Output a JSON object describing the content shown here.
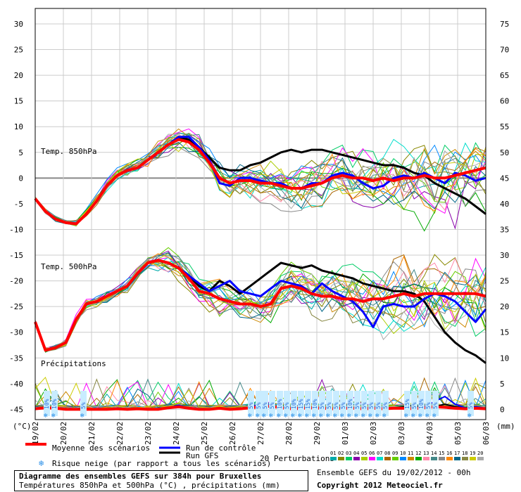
{
  "units": {
    "left": "(°C)",
    "right": "(mm)"
  },
  "left_ticks": [
    30,
    25,
    20,
    15,
    10,
    5,
    0,
    -5,
    -10,
    -15,
    -20,
    -25,
    -30,
    -35,
    -40,
    -45
  ],
  "right_ticks": [
    75,
    70,
    65,
    60,
    55,
    50,
    45,
    40,
    35,
    30,
    25,
    20,
    15,
    10,
    5,
    0
  ],
  "date_labels": [
    "19/02",
    "20/02",
    "21/02",
    "22/02",
    "23/02",
    "24/02",
    "25/02",
    "26/02",
    "27/02",
    "28/02",
    "29/02",
    "01/03",
    "02/03",
    "03/03",
    "04/03",
    "05/03",
    "06/03"
  ],
  "panel_labels": {
    "t850": "Temp. 850hPa",
    "t500": "Temp. 500hPa",
    "precip": "Précipitations"
  },
  "snow_risk": [
    {
      "x": 66,
      "label": "10%"
    },
    {
      "x": 77,
      "label": "10%"
    },
    {
      "x": 118,
      "label": "5%"
    },
    {
      "x": 356,
      "label": "5%"
    },
    {
      "x": 367,
      "label": "5%"
    },
    {
      "x": 376,
      "label": "5%"
    },
    {
      "x": 386,
      "label": "5%"
    },
    {
      "x": 397,
      "label": "10%"
    },
    {
      "x": 407,
      "label": "5%"
    },
    {
      "x": 417,
      "label": "10%"
    },
    {
      "x": 427,
      "label": "15%"
    },
    {
      "x": 437,
      "label": "15%"
    },
    {
      "x": 447,
      "label": "10%"
    },
    {
      "x": 457,
      "label": "5%"
    },
    {
      "x": 467,
      "label": "5%"
    },
    {
      "x": 477,
      "label": "5%"
    },
    {
      "x": 487,
      "label": "5%"
    },
    {
      "x": 497,
      "label": "10%"
    },
    {
      "x": 507,
      "label": "5%"
    },
    {
      "x": 517,
      "label": "5%"
    },
    {
      "x": 527,
      "label": "5%"
    },
    {
      "x": 537,
      "label": "5%"
    },
    {
      "x": 547,
      "label": "5%"
    },
    {
      "x": 578,
      "label": "15%"
    },
    {
      "x": 588,
      "label": "5%"
    },
    {
      "x": 598,
      "label": "10%"
    },
    {
      "x": 608,
      "label": "5%"
    },
    {
      "x": 618,
      "label": "5%"
    },
    {
      "x": 668,
      "label": "5%"
    }
  ],
  "legend": {
    "mean": "Moyenne des scénarios",
    "control": "Run de contrôle",
    "gfs": "Run GFS",
    "snow": "Risque neige (par rapport a tous les scénarios)",
    "perturbations": "20 Perturbations",
    "perturbation_ids": [
      "01",
      "02",
      "03",
      "04",
      "05",
      "06",
      "07",
      "08",
      "09",
      "10",
      "11",
      "12",
      "13",
      "14",
      "15",
      "16",
      "17",
      "18",
      "19",
      "20"
    ]
  },
  "colors": {
    "mean": "#ff0000",
    "control": "#0000ff",
    "gfs": "#000000",
    "perturbations": [
      "#00aaaa",
      "#888800",
      "#00cc66",
      "#8800aa",
      "#aacc00",
      "#ff00ff",
      "#00ddcc",
      "#aa6600",
      "#66cc00",
      "#0088ff",
      "#cc8800",
      "#00aa00",
      "#ff88aa",
      "#448888",
      "#888888",
      "#ff8800",
      "#006688",
      "#888844",
      "#cccc00",
      "#aaaaaa"
    ]
  },
  "title": {
    "main": "Diagramme des ensembles GEFS sur 384h pour Bruxelles",
    "sub": "Températures 850hPa et 500hPa (°C) , précipitations (mm)"
  },
  "ensemble_info": "Ensemble GEFS du 19/02/2012 - 00h",
  "copyright": "Copyright 2012 Meteociel.fr",
  "chart_data": {
    "type": "line",
    "x_unit": "date (6-hourly steps, 19/02/2012 00h to 06/03/2012)",
    "t850": {
      "ylabel": "Temp. 850hPa (°C)",
      "mean": [
        -4,
        -6.5,
        -8,
        -8.7,
        -8.9,
        -7,
        -4.5,
        -1.5,
        0.5,
        1.5,
        2,
        3.5,
        5,
        6.5,
        7.5,
        7,
        5.5,
        3,
        0,
        -1,
        -0.5,
        -0.5,
        -1,
        -1,
        -1.5,
        -2,
        -2,
        -1.5,
        -1,
        0,
        0.5,
        0,
        0,
        -0.5,
        0,
        -0.5,
        0,
        0,
        0.5,
        0,
        0,
        0.5,
        1,
        1.5,
        2
      ],
      "control": [
        -4,
        -6.5,
        -8,
        -8.7,
        -8.9,
        -7,
        -4.5,
        -1.5,
        0.5,
        1.5,
        2,
        3.5,
        5,
        6.5,
        8,
        8,
        6,
        3.5,
        -1,
        -1.5,
        0,
        0,
        -0.5,
        -1,
        -1,
        -2,
        -2,
        -1,
        -1,
        0.5,
        1,
        0.5,
        -1,
        -2,
        -1.5,
        0,
        0.5,
        0,
        1,
        0,
        -1,
        1,
        0.5,
        -0.5,
        0
      ],
      "gfs": [
        -4,
        -6.5,
        -8,
        -8.7,
        -8.9,
        -7,
        -4.5,
        -1.5,
        0.5,
        1.5,
        2,
        3.5,
        5,
        6.5,
        8,
        7.5,
        6,
        4,
        2,
        1.5,
        1.5,
        2.5,
        3,
        4,
        5,
        5.5,
        5,
        5.5,
        5.5,
        5,
        4.5,
        4,
        3.5,
        3,
        2.5,
        2.5,
        2,
        1,
        0.5,
        -1,
        -2,
        -3,
        -4,
        -5.5,
        -7
      ]
    },
    "t500": {
      "ylabel": "Temp. 500hPa (°C)",
      "mean": [
        -28,
        -33.5,
        -33,
        -32,
        -27.5,
        -24.5,
        -24,
        -23,
        -22,
        -21,
        -18.5,
        -16.5,
        -16,
        -16.5,
        -17.5,
        -19.5,
        -22,
        -22.5,
        -23.5,
        -24,
        -24.5,
        -24.5,
        -25,
        -24.5,
        -21.5,
        -21,
        -21.5,
        -22.5,
        -23,
        -23,
        -23.5,
        -23.5,
        -24,
        -23.5,
        -23.5,
        -23,
        -22.5,
        -23,
        -22.5,
        -22.5,
        -22.5,
        -22.5,
        -22.5,
        -22.5,
        -23
      ],
      "control": [
        -28,
        -33.5,
        -33,
        -32,
        -27.5,
        -24.5,
        -24,
        -23,
        -22,
        -21,
        -18.5,
        -16.5,
        -16,
        -16.5,
        -17.5,
        -19,
        -20.5,
        -22,
        -21,
        -20,
        -22,
        -22.5,
        -23,
        -21.5,
        -20,
        -20.5,
        -21,
        -22.5,
        -20.5,
        -22,
        -23,
        -24,
        -26,
        -29,
        -25,
        -24.5,
        -25,
        -25,
        -23.5,
        -22.5,
        -23,
        -24,
        -26,
        -28,
        -25.5
      ],
      "gfs": [
        -28,
        -33.5,
        -33,
        -32,
        -27.5,
        -24.5,
        -24,
        -23,
        -22,
        -21,
        -18.5,
        -16.5,
        -16,
        -16.5,
        -17.5,
        -19,
        -21,
        -22,
        -20,
        -21,
        -22.5,
        -21,
        -19.5,
        -18,
        -16.5,
        -17,
        -17.5,
        -17,
        -18,
        -18.5,
        -19,
        -19.5,
        -20.5,
        -21,
        -21.5,
        -22,
        -22,
        -22.5,
        -24,
        -27,
        -30,
        -32,
        -33.5,
        -34.5,
        -36
      ]
    },
    "precip": {
      "ylabel": "Précipitations (mm)",
      "mean": [
        0.1,
        0.3,
        0.2,
        0,
        0,
        0,
        0,
        0,
        0.1,
        0,
        0.1,
        0,
        0,
        0.3,
        0.5,
        0.2,
        0,
        0,
        0.2,
        0,
        0.1,
        0.3,
        0.5,
        0.6,
        0.3,
        0.1,
        0.2,
        0.3,
        0.2,
        0.1,
        0.2,
        0.2,
        0.1,
        0.2,
        0.1,
        0.2,
        0.2,
        0.1,
        0.3,
        0.5,
        0.4,
        0.2,
        0.1,
        0.2,
        0.1
      ],
      "control": [
        0.1,
        0.3,
        0.2,
        0,
        0,
        0,
        0,
        0,
        0,
        0,
        0,
        0,
        0,
        0.2,
        0.8,
        0.2,
        0,
        0,
        0.3,
        0,
        0,
        0.5,
        1,
        0.8,
        0.2,
        0,
        0,
        0.4,
        0.2,
        0,
        0.2,
        0.2,
        0,
        0.3,
        0,
        0.2,
        0.2,
        0,
        0.5,
        1.5,
        2.5,
        1,
        0.3,
        0.5,
        0.2
      ],
      "gfs": [
        0.1,
        0.3,
        0.2,
        0,
        0,
        0,
        0,
        0,
        0,
        0,
        0,
        0,
        0,
        0.3,
        0.4,
        0.2,
        0,
        0,
        0.2,
        0,
        0,
        0.2,
        0.4,
        0.5,
        0.2,
        0,
        0.3,
        0.2,
        0.1,
        0.2,
        0.3,
        0.2,
        0,
        0,
        0.3,
        0.2,
        0.5,
        0.8,
        0.3,
        0.5,
        1,
        0.5,
        0.2,
        0.3,
        0.2
      ]
    },
    "left_ylim": [
      -47,
      33
    ],
    "right_ylim": [
      -2,
      78
    ],
    "grid": true,
    "legend_position": "bottom"
  }
}
